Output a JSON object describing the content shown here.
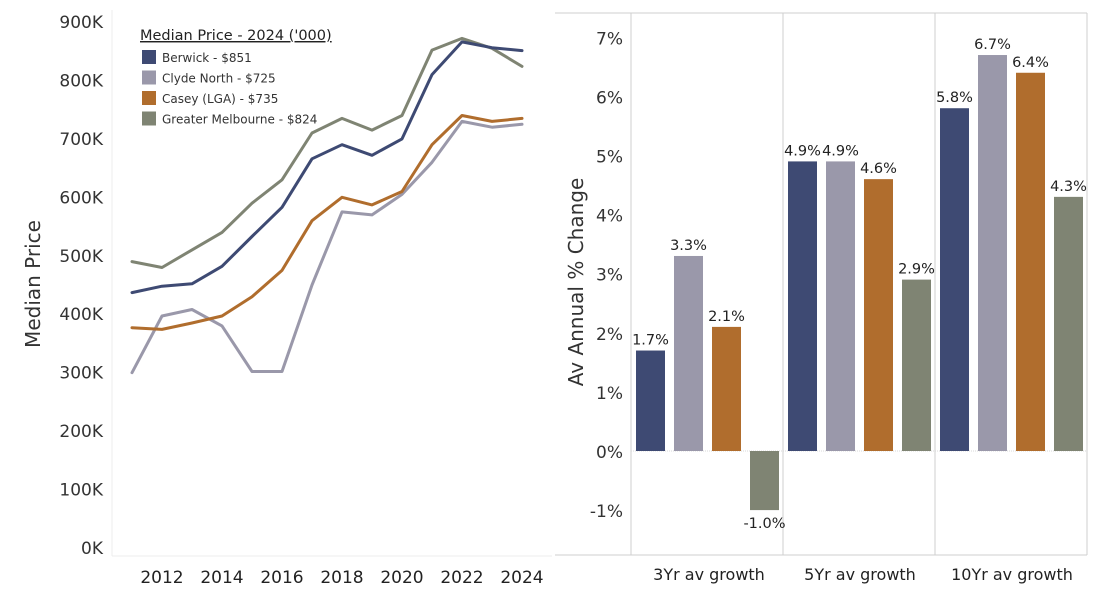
{
  "chart_data": [
    {
      "type": "line",
      "title": "Median Price - 2024 ('000)",
      "xlabel": "",
      "ylabel": "Median Price",
      "ylim": [
        0,
        900000
      ],
      "yticks": [
        "0K",
        "100K",
        "200K",
        "300K",
        "400K",
        "500K",
        "600K",
        "700K",
        "800K",
        "900K"
      ],
      "ytick_values": [
        0,
        100000,
        200000,
        300000,
        400000,
        500000,
        600000,
        700000,
        800000,
        900000
      ],
      "xticks": [
        "2012",
        "2014",
        "2016",
        "2018",
        "2020",
        "2022",
        "2024"
      ],
      "xtick_values": [
        2012,
        2014,
        2016,
        2018,
        2020,
        2022,
        2024
      ],
      "xlim": [
        2010.5,
        2024.7
      ],
      "legend_position": "top-left",
      "x": [
        2011,
        2012,
        2013,
        2014,
        2015,
        2016,
        2017,
        2018,
        2019,
        2020,
        2021,
        2022,
        2023,
        2024
      ],
      "series": [
        {
          "name": "Berwick",
          "legend_label": "Berwick  - $851",
          "color": "#3e4a73",
          "values": [
            437000,
            448000,
            452000,
            482000,
            533000,
            583000,
            666000,
            690000,
            672000,
            700000,
            810000,
            866000,
            856000,
            851000
          ]
        },
        {
          "name": "Clyde North",
          "legend_label": "Clyde North  - $725",
          "color": "#9a98aa",
          "values": [
            300000,
            397000,
            408000,
            380000,
            302000,
            302000,
            450000,
            575000,
            570000,
            605000,
            660000,
            730000,
            720000,
            725000
          ]
        },
        {
          "name": "Casey (LGA)",
          "legend_label": "Casey (LGA)  - $735",
          "color": "#b06d2d",
          "values": [
            377000,
            374000,
            385000,
            397000,
            430000,
            475000,
            560000,
            600000,
            587000,
            610000,
            690000,
            740000,
            730000,
            735000
          ]
        },
        {
          "name": "Greater Melbourne",
          "legend_label": "Greater Melbourne  - $824",
          "color": "#7f8473",
          "values": [
            490000,
            480000,
            510000,
            540000,
            590000,
            630000,
            710000,
            735000,
            715000,
            740000,
            852000,
            872000,
            855000,
            824000
          ]
        }
      ]
    },
    {
      "type": "bar",
      "title": "",
      "xlabel": "",
      "ylabel": "Av Annual % Change",
      "ylim": [
        -1.75,
        7.3
      ],
      "yticks": [
        "-1%",
        "0%",
        "1%",
        "2%",
        "3%",
        "4%",
        "5%",
        "6%",
        "7%"
      ],
      "ytick_values": [
        -1,
        0,
        1,
        2,
        3,
        4,
        5,
        6,
        7
      ],
      "categories": [
        "3Yr av growth",
        "5Yr av growth",
        "10Yr av growth"
      ],
      "series": [
        {
          "name": "Berwick",
          "color": "#3e4a73",
          "values": [
            1.7,
            4.9,
            5.8
          ],
          "labels": [
            "1.7%",
            "4.9%",
            "5.8%"
          ]
        },
        {
          "name": "Clyde North",
          "color": "#9a98aa",
          "values": [
            3.3,
            4.9,
            6.7
          ],
          "labels": [
            "3.3%",
            "4.9%",
            "6.7%"
          ]
        },
        {
          "name": "Casey (LGA)",
          "color": "#b06d2d",
          "values": [
            2.1,
            4.6,
            6.4
          ],
          "labels": [
            "2.1%",
            "4.6%",
            "6.4%"
          ]
        },
        {
          "name": "Greater Melbourne",
          "color": "#7f8473",
          "values": [
            -1.0,
            2.9,
            4.3
          ],
          "labels": [
            "-1.0%",
            "2.9%",
            "4.3%"
          ]
        }
      ]
    }
  ]
}
